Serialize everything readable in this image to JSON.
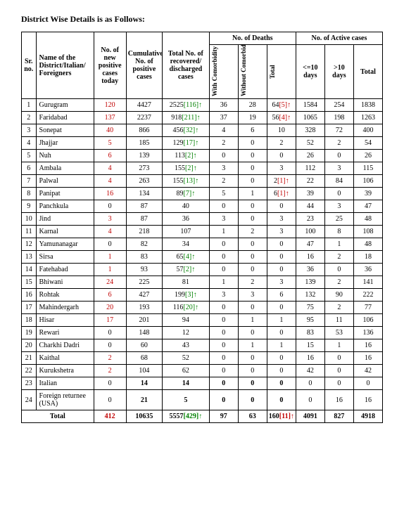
{
  "title": "District Wise Details is as Follows:",
  "headers": {
    "sr": "Sr. no.",
    "name": "Name of the District/Italian/ Foreigners",
    "new": "No. of new positive cases today",
    "cum": "Cumulative No. of positive cases",
    "rec": "Total No. of recovered/ discharged cases",
    "deaths": "No. of Deaths",
    "active": "No. of Active cases",
    "withCom": "With Comorbidity",
    "withoutCom": "Without Comorbidity",
    "dTotal": "Total",
    "le10": "<=10 days",
    "gt10": ">10 days",
    "aTotal": "Total"
  },
  "rows": [
    {
      "sr": "1",
      "name": "Gurugram",
      "new": "120",
      "cum": "4427",
      "rec": "2525",
      "recB": "[116]",
      "recArr": "g",
      "d1": "36",
      "d2": "28",
      "d3": "64",
      "d3B": "[5]",
      "d3Arr": "r",
      "a1": "1584",
      "a2": "254",
      "a3": "1838"
    },
    {
      "sr": "2",
      "name": "Faridabad",
      "new": "137",
      "cum": "2237",
      "rec": "918",
      "recB": "[211]",
      "recArr": "g",
      "d1": "37",
      "d2": "19",
      "d3": "56",
      "d3B": "[4]",
      "d3Arr": "r",
      "a1": "1065",
      "a2": "198",
      "a3": "1263"
    },
    {
      "sr": "3",
      "name": "Sonepat",
      "new": "40",
      "cum": "866",
      "rec": "456",
      "recB": "[32]",
      "recArr": "g",
      "d1": "4",
      "d2": "6",
      "d3": "10",
      "a1": "328",
      "a2": "72",
      "a3": "400"
    },
    {
      "sr": "4",
      "name": "Jhajjar",
      "new": "5",
      "cum": "185",
      "rec": "129",
      "recB": "[17]",
      "recArr": "g",
      "d1": "2",
      "d2": "0",
      "d3": "2",
      "a1": "52",
      "a2": "2",
      "a3": "54"
    },
    {
      "sr": "5",
      "name": "Nuh",
      "new": "6",
      "cum": "139",
      "rec": "113",
      "recB": "[2]",
      "recArr": "g",
      "d1": "0",
      "d2": "0",
      "d3": "0",
      "a1": "26",
      "a2": "0",
      "a3": "26"
    },
    {
      "sr": "6",
      "name": "Ambala",
      "new": "4",
      "cum": "273",
      "rec": "155",
      "recB": "[2]",
      "recArr": "g",
      "d1": "3",
      "d2": "0",
      "d3": "3",
      "a1": "112",
      "a2": "3",
      "a3": "115"
    },
    {
      "sr": "7",
      "name": "Palwal",
      "new": "4",
      "cum": "263",
      "rec": "155",
      "recB": "[13]",
      "recArr": "g",
      "d1": "2",
      "d2": "0",
      "d3": "2",
      "d3B": "[1]",
      "d3Arr": "r",
      "a1": "22",
      "a2": "84",
      "a3": "106"
    },
    {
      "sr": "8",
      "name": "Panipat",
      "new": "16",
      "cum": "134",
      "rec": "89",
      "recB": "[7]",
      "recArr": "g",
      "d1": "5",
      "d2": "1",
      "d3": "6",
      "d3B": "[1]",
      "d3Arr": "r",
      "a1": "39",
      "a2": "0",
      "a3": "39"
    },
    {
      "sr": "9",
      "name": "Panchkula",
      "new": "0",
      "newBlack": true,
      "cum": "87",
      "rec": "40",
      "d1": "0",
      "d2": "0",
      "d3": "0",
      "a1": "44",
      "a2": "3",
      "a3": "47"
    },
    {
      "sr": "10",
      "name": "Jind",
      "new": "3",
      "cum": "87",
      "rec": "36",
      "d1": "3",
      "d2": "0",
      "d3": "3",
      "a1": "23",
      "a2": "25",
      "a3": "48"
    },
    {
      "sr": "11",
      "name": "Karnal",
      "new": "4",
      "cum": "218",
      "rec": "107",
      "d1": "1",
      "d2": "2",
      "d3": "3",
      "a1": "100",
      "a2": "8",
      "a3": "108"
    },
    {
      "sr": "12",
      "name": "Yamunanagar",
      "new": "0",
      "newBlack": true,
      "cum": "82",
      "rec": "34",
      "d1": "0",
      "d2": "0",
      "d3": "0",
      "a1": "47",
      "a2": "1",
      "a3": "48"
    },
    {
      "sr": "13",
      "name": "Sirsa",
      "new": "1",
      "cum": "83",
      "rec": "65",
      "recB": "[4]",
      "recArr": "g",
      "d1": "0",
      "d2": "0",
      "d3": "0",
      "a1": "16",
      "a2": "2",
      "a3": "18"
    },
    {
      "sr": "14",
      "name": "Fatehabad",
      "new": "1",
      "cum": "93",
      "rec": "57",
      "recB": "[2]",
      "recArr": "g",
      "d1": "0",
      "d2": "0",
      "d3": "0",
      "a1": "36",
      "a2": "0",
      "a3": "36"
    },
    {
      "sr": "15",
      "name": "Bhiwani",
      "new": "24",
      "cum": "225",
      "rec": "81",
      "d1": "1",
      "d2": "2",
      "d3": "3",
      "a1": "139",
      "a2": "2",
      "a3": "141"
    },
    {
      "sr": "16",
      "name": "Rohtak",
      "new": "6",
      "cum": "427",
      "rec": "199",
      "recB": "[3]",
      "recArr": "g",
      "d1": "3",
      "d2": "3",
      "d3": "6",
      "a1": "132",
      "a2": "90",
      "a3": "222"
    },
    {
      "sr": "17",
      "name": "Mahindergarh",
      "new": "20",
      "cum": "193",
      "rec": "116",
      "recB": "[20]",
      "recArr": "g",
      "d1": "0",
      "d2": "0",
      "d3": "0",
      "a1": "75",
      "a2": "2",
      "a3": "77"
    },
    {
      "sr": "18",
      "name": "Hisar",
      "new": "17",
      "cum": "201",
      "rec": "94",
      "d1": "0",
      "d2": "1",
      "d3": "1",
      "a1": "95",
      "a2": "11",
      "a3": "106"
    },
    {
      "sr": "19",
      "name": "Rewari",
      "new": "0",
      "newBlack": true,
      "cum": "148",
      "rec": "12",
      "d1": "0",
      "d2": "0",
      "d3": "0",
      "a1": "83",
      "a2": "53",
      "a3": "136"
    },
    {
      "sr": "20",
      "name": "Charkhi Dadri",
      "new": "0",
      "newBlack": true,
      "cum": "60",
      "rec": "43",
      "d1": "0",
      "d2": "1",
      "d3": "1",
      "a1": "15",
      "a2": "1",
      "a3": "16"
    },
    {
      "sr": "21",
      "name": "Kaithal",
      "new": "2",
      "cum": "68",
      "rec": "52",
      "d1": "0",
      "d2": "0",
      "d3": "0",
      "a1": "16",
      "a2": "0",
      "a3": "16"
    },
    {
      "sr": "22",
      "name": "Kurukshetra",
      "new": "2",
      "cum": "104",
      "rec": "62",
      "d1": "0",
      "d2": "0",
      "d3": "0",
      "a1": "42",
      "a2": "0",
      "a3": "42"
    },
    {
      "sr": "23",
      "name": "Italian",
      "new": "0",
      "newBlack": true,
      "cum": "14",
      "rec": "14",
      "d1": "0",
      "d2": "0",
      "d3": "0",
      "a1": "0",
      "a2": "0",
      "a3": "0",
      "bold": true
    },
    {
      "sr": "24",
      "name": "Foreign returnee (USA)",
      "new": "0",
      "newBlack": true,
      "cum": "21",
      "rec": "5",
      "d1": "0",
      "d2": "0",
      "d3": "0",
      "a1": "0",
      "a2": "16",
      "a3": "16",
      "bold": true
    }
  ],
  "total": {
    "label": "Total",
    "new": "412",
    "cum": "10635",
    "rec": "5557",
    "recB": "[429]",
    "recArr": "g",
    "d1": "97",
    "d2": "63",
    "d3": "160",
    "d3B": "[11]",
    "d3Arr": "r",
    "a1": "4091",
    "a2": "827",
    "a3": "4918"
  },
  "colors": {
    "red": "#c00000",
    "green": "#008000"
  }
}
